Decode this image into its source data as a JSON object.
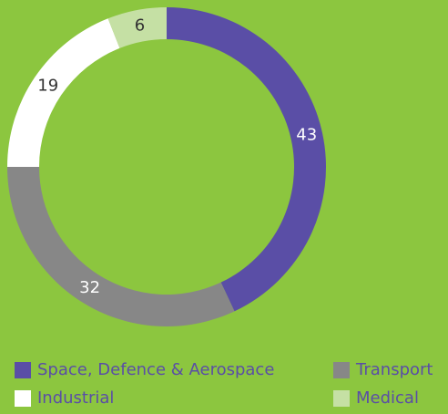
{
  "chart_data": {
    "type": "pie",
    "donut": true,
    "categories": [
      "Space, Defence & Aerospace",
      "Transport",
      "Industrial",
      "Medical"
    ],
    "values": [
      43,
      32,
      19,
      6
    ],
    "colors": [
      "#5a4ea6",
      "#878787",
      "#ffffff",
      "#c5e0a4"
    ],
    "legend": "bottom"
  }
}
